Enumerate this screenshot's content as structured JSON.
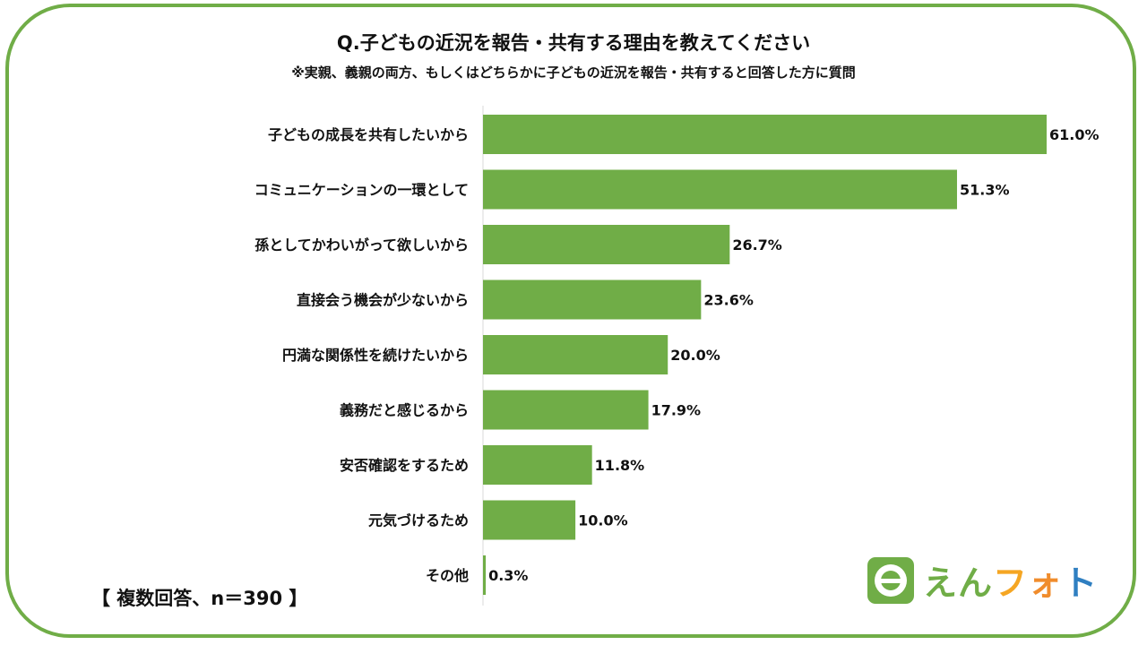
{
  "title": "Q.子どもの近況を報告・共有する理由を教えてください",
  "subtitle": "※実親、義親の両方、もしくはどちらかに子どもの近況を報告・共有すると回答した方に質問",
  "note": "【 複数回答、n＝390 】",
  "logo": {
    "text": [
      "え",
      "ん",
      "フ",
      "ォ",
      "ト"
    ],
    "colors": [
      "#70ad47",
      "#70ad47",
      "#f5a623",
      "#f08c2c",
      "#2f7fc1"
    ]
  },
  "chart_data": {
    "type": "bar",
    "orientation": "horizontal",
    "categories": [
      "子どもの成長を共有したいから",
      "コミュニケーションの一環として",
      "孫としてかわいがって欲しいから",
      "直接会う機会が少ないから",
      "円満な関係性を続けたいから",
      "義務だと感じるから",
      "安否確認をするため",
      "元気づけるため",
      "その他"
    ],
    "values": [
      61.0,
      51.3,
      26.7,
      23.6,
      20.0,
      17.9,
      11.8,
      10.0,
      0.3
    ],
    "value_labels": [
      "61.0%",
      "51.3%",
      "26.7%",
      "23.6%",
      "20.0%",
      "17.9%",
      "11.8%",
      "10.0%",
      "0.3%"
    ],
    "xlim": [
      0,
      70
    ],
    "bar_color": "#70ad47",
    "grid": false,
    "legend": "none"
  }
}
